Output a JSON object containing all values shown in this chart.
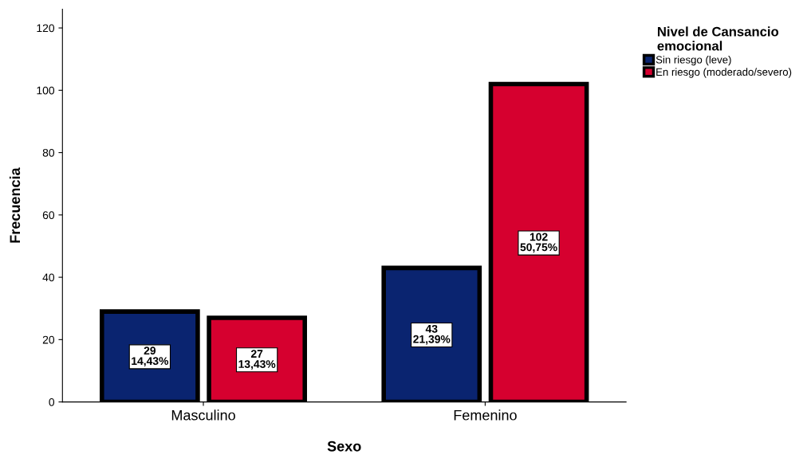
{
  "chart_data": {
    "type": "bar",
    "xlabel": "Sexo",
    "ylabel": "Frecuencia",
    "legend_title": "Nivel de Cansancio\nemocional",
    "legend": "right",
    "categories": [
      "Masculino",
      "Femenino"
    ],
    "series": [
      {
        "name": "Sin riesgo (leve)",
        "color": "#0a2470",
        "values": [
          29,
          43
        ],
        "value_labels": [
          "29\n14,43%",
          "43\n21,39%"
        ]
      },
      {
        "name": "En riesgo (moderado/severo)",
        "color": "#d6002f",
        "values": [
          27,
          102
        ],
        "value_labels": [
          "27\n13,43%",
          "102\n50,75%"
        ]
      }
    ],
    "ylim": [
      0,
      126
    ],
    "yticks": [
      0,
      20,
      40,
      60,
      80,
      100,
      120
    ],
    "grid": false
  }
}
